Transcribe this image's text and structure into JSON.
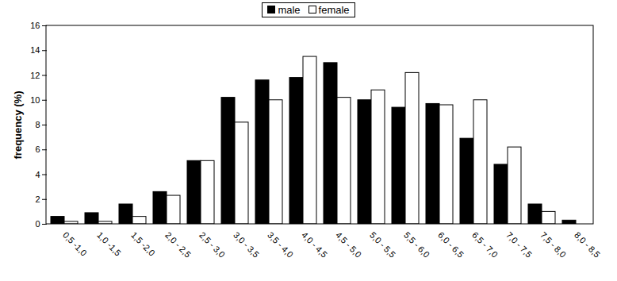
{
  "chart_data": {
    "type": "bar",
    "categories": [
      "0,5 -1,0",
      "1,0 -1,5",
      "1,5 -2,0",
      "2,0 - 2,5",
      "2,5 - 3,0",
      "3,0 - 3,5",
      "3,5 - 4,0",
      "4,0 - 4,5",
      "4,5 - 5,0",
      "5,0 - 5,5",
      "5,5 - 6,0",
      "6,0 - 6,5",
      "6,5 - 7,0",
      "7,0 - 7,5",
      "7,5 - 8,0",
      "8,0 - 8,5"
    ],
    "series": [
      {
        "name": "male",
        "color": "#000000",
        "values": [
          0.6,
          0.9,
          1.6,
          2.6,
          5.1,
          10.2,
          11.6,
          11.8,
          13.0,
          10.0,
          9.4,
          9.7,
          6.9,
          4.8,
          1.6,
          0.3
        ]
      },
      {
        "name": "female",
        "color": "#ffffff",
        "values": [
          0.2,
          0.2,
          0.6,
          2.3,
          5.1,
          8.2,
          10.0,
          13.5,
          10.2,
          10.8,
          12.2,
          9.6,
          10.0,
          6.2,
          1.0,
          0.0
        ]
      }
    ],
    "y_label": "frequency (%)",
    "ylim": [
      0,
      16
    ],
    "yticks": [
      0,
      2,
      4,
      6,
      8,
      10,
      12,
      14,
      16
    ],
    "grid": false,
    "legend": "top"
  }
}
